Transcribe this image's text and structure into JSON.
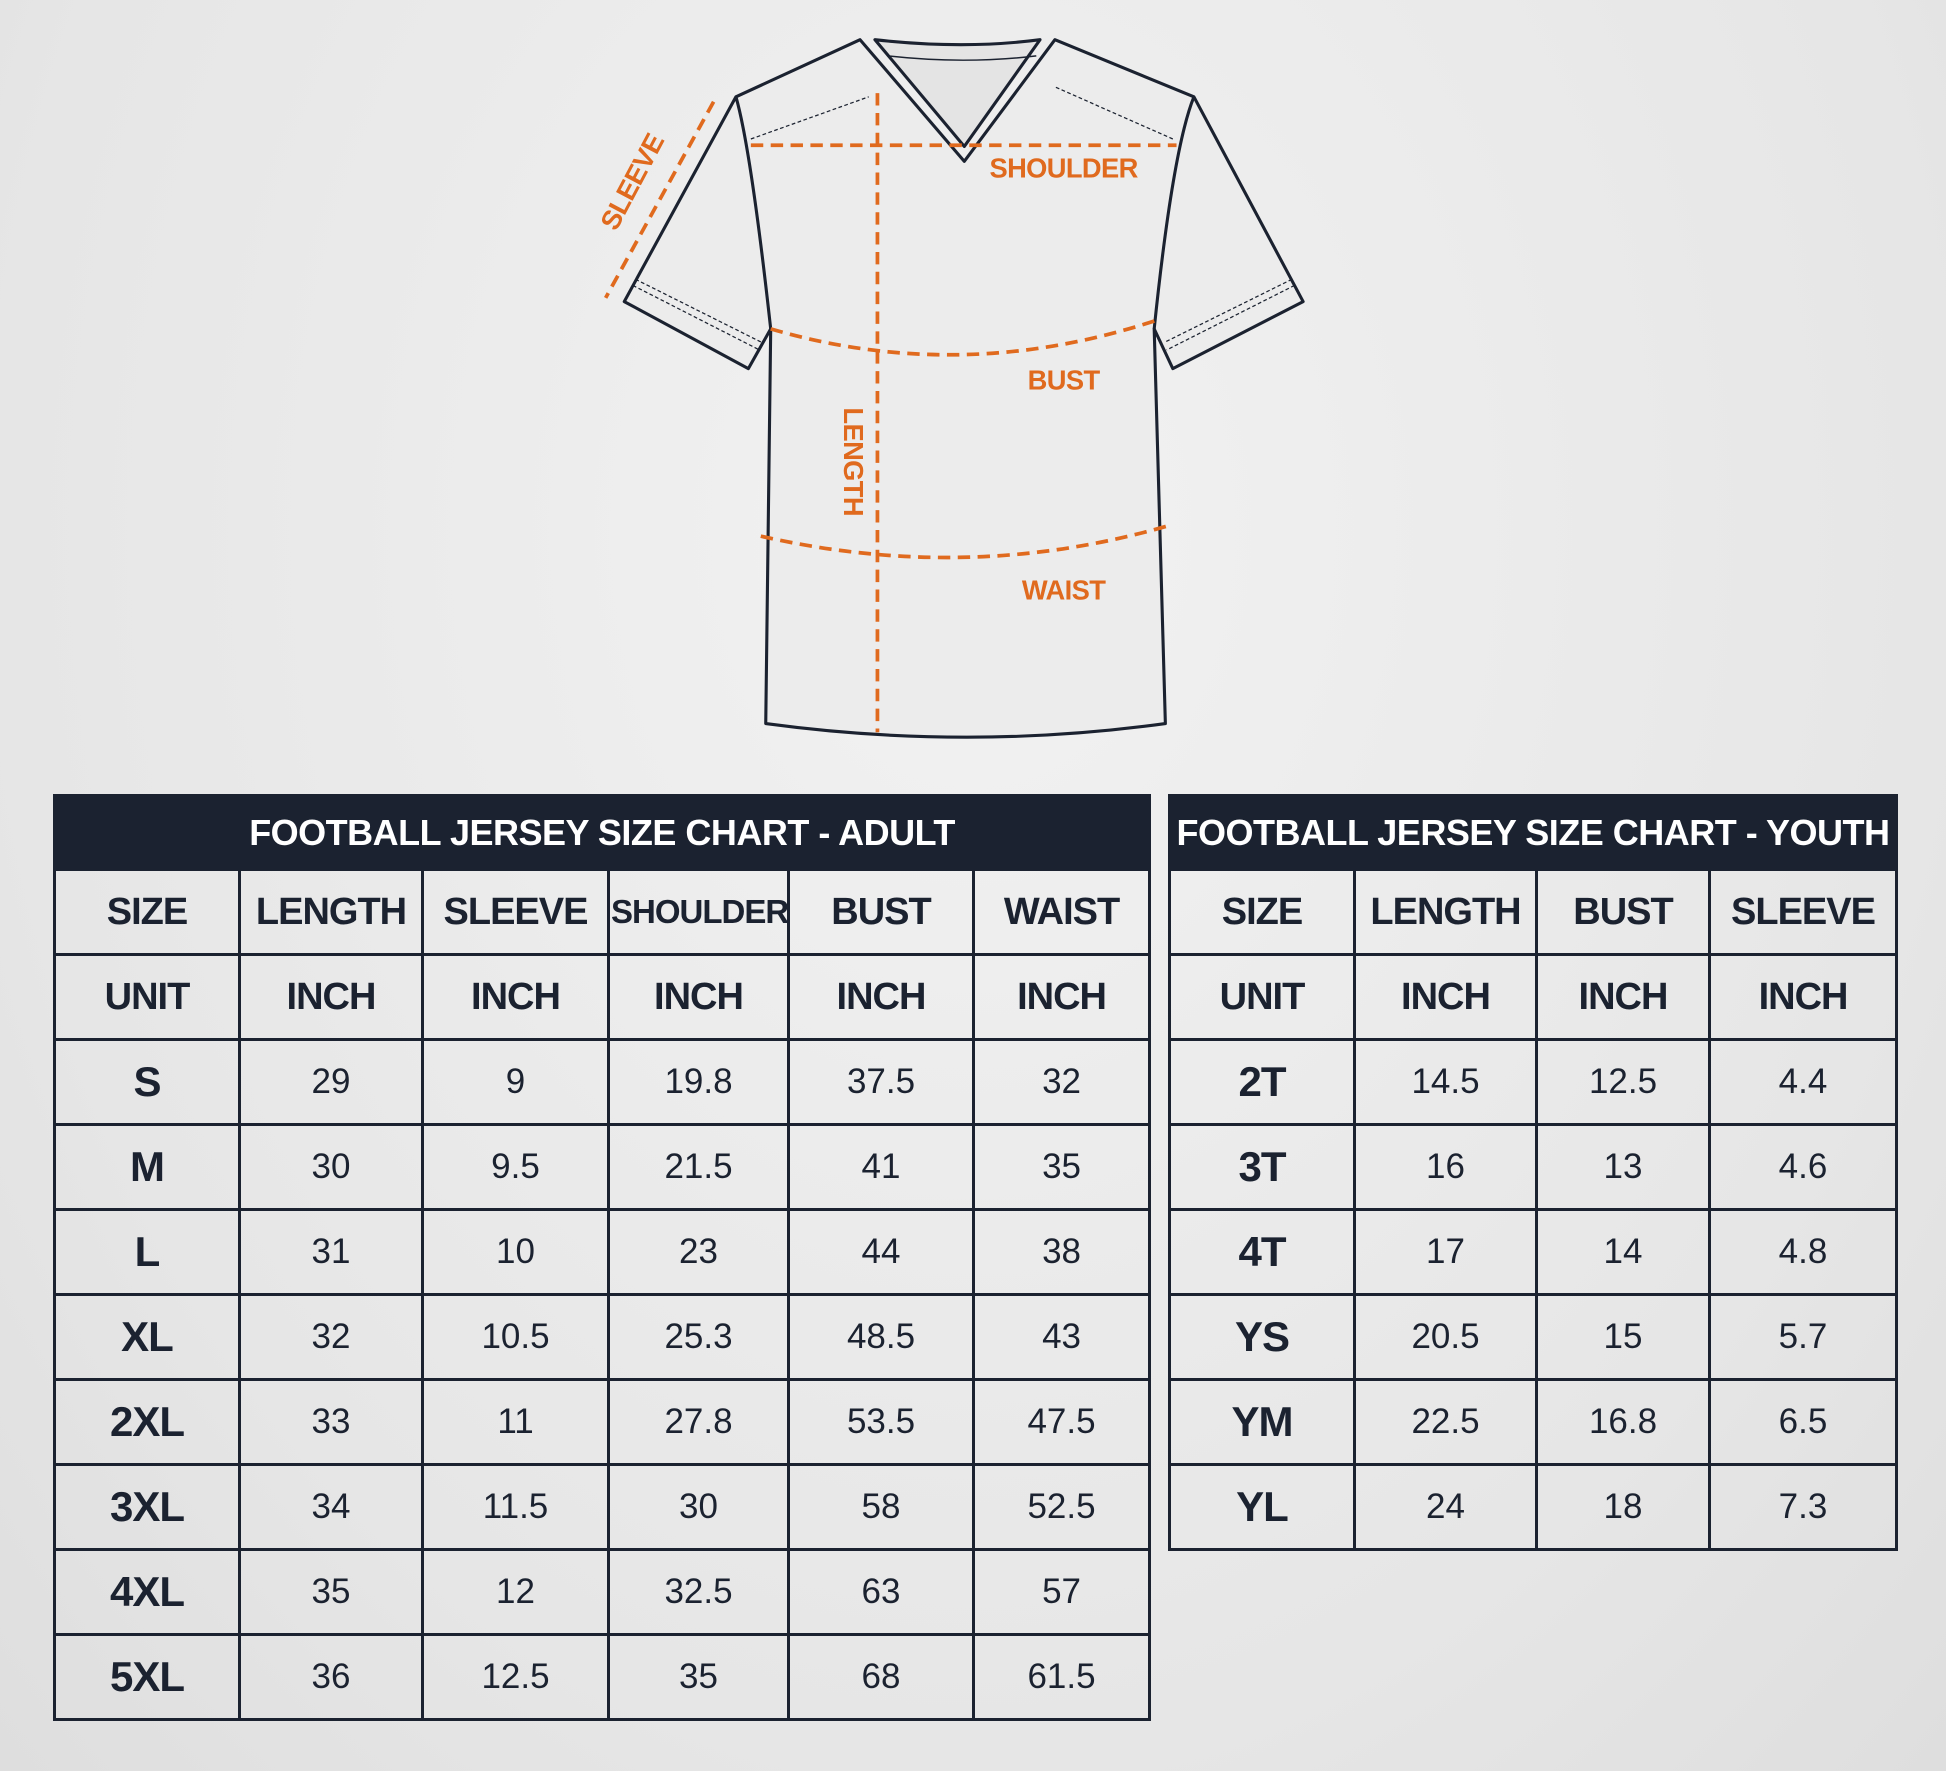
{
  "diagram": {
    "labels": {
      "sleeve": "SLEEVE",
      "shoulder": "SHOULDER",
      "bust": "BUST",
      "length": "LENGTH",
      "waist": "WAIST"
    },
    "colors": {
      "measure": "#e06a1e",
      "outline": "#1b2230"
    }
  },
  "adult": {
    "title": "FOOTBALL JERSEY SIZE CHART - ADULT",
    "headers": [
      "SIZE",
      "LENGTH",
      "SLEEVE",
      "SHOULDER",
      "BUST",
      "WAIST"
    ],
    "units": [
      "UNIT",
      "INCH",
      "INCH",
      "INCH",
      "INCH",
      "INCH"
    ],
    "rows": [
      [
        "S",
        "29",
        "9",
        "19.8",
        "37.5",
        "32"
      ],
      [
        "M",
        "30",
        "9.5",
        "21.5",
        "41",
        "35"
      ],
      [
        "L",
        "31",
        "10",
        "23",
        "44",
        "38"
      ],
      [
        "XL",
        "32",
        "10.5",
        "25.3",
        "48.5",
        "43"
      ],
      [
        "2XL",
        "33",
        "11",
        "27.8",
        "53.5",
        "47.5"
      ],
      [
        "3XL",
        "34",
        "11.5",
        "30",
        "58",
        "52.5"
      ],
      [
        "4XL",
        "35",
        "12",
        "32.5",
        "63",
        "57"
      ],
      [
        "5XL",
        "36",
        "12.5",
        "35",
        "68",
        "61.5"
      ]
    ]
  },
  "youth": {
    "title": "FOOTBALL JERSEY SIZE CHART - YOUTH",
    "headers": [
      "SIZE",
      "LENGTH",
      "BUST",
      "SLEEVE"
    ],
    "units": [
      "UNIT",
      "INCH",
      "INCH",
      "INCH"
    ],
    "rows": [
      [
        "2T",
        "14.5",
        "12.5",
        "4.4"
      ],
      [
        "3T",
        "16",
        "13",
        "4.6"
      ],
      [
        "4T",
        "17",
        "14",
        "4.8"
      ],
      [
        "YS",
        "20.5",
        "15",
        "5.7"
      ],
      [
        "YM",
        "22.5",
        "16.8",
        "6.5"
      ],
      [
        "YL",
        "24",
        "18",
        "7.3"
      ]
    ]
  }
}
